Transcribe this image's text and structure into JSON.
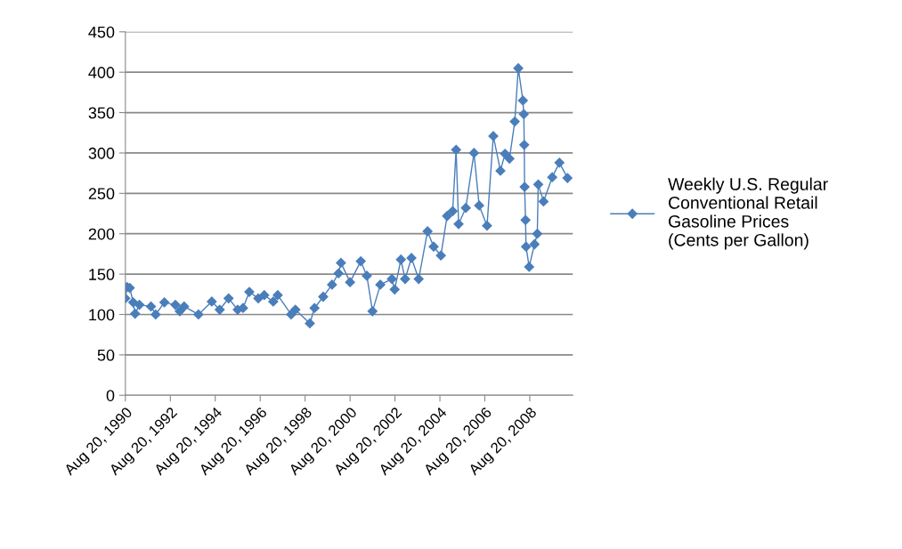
{
  "chart_data": {
    "type": "line",
    "x": [
      "1990-08-20",
      "1990-09-15",
      "1990-10-30",
      "1990-12-25",
      "1991-01-25",
      "1991-04-05",
      "1991-10-10",
      "1991-12-25",
      "1992-05-15",
      "1992-11-10",
      "1993-01-20",
      "1993-04-01",
      "1993-11-20",
      "1994-06-25",
      "1994-11-01",
      "1995-03-25",
      "1995-08-20",
      "1995-11-15",
      "1996-02-25",
      "1996-07-20",
      "1996-10-25",
      "1997-03-20",
      "1997-06-01",
      "1998-01-05",
      "1998-03-15",
      "1998-11-05",
      "1999-01-20",
      "1999-06-10",
      "1999-11-01",
      "2000-02-15",
      "2000-03-25",
      "2000-08-20",
      "2001-02-10",
      "2001-05-20",
      "2001-08-20",
      "2001-12-25",
      "2002-07-01",
      "2002-08-15",
      "2002-11-25",
      "2003-02-01",
      "2003-05-15",
      "2003-09-10",
      "2004-02-01",
      "2004-05-10",
      "2004-09-05",
      "2004-12-15",
      "2005-03-15",
      "2005-05-10",
      "2005-06-20",
      "2005-10-15",
      "2006-02-25",
      "2006-05-20",
      "2006-09-25",
      "2007-01-05",
      "2007-05-01",
      "2007-07-15",
      "2007-09-25",
      "2007-12-20",
      "2008-02-15",
      "2008-04-30",
      "2008-05-15",
      "2008-05-22",
      "2008-05-28",
      "2008-06-12",
      "2008-06-20",
      "2008-08-10",
      "2008-11-05",
      "2008-12-20",
      "2009-01-05",
      "2009-04-01",
      "2009-08-20",
      "2009-12-15",
      "2010-04-25"
    ],
    "series": [
      {
        "name": "Weekly U.S. Regular Conventional Retail Gasoline Prices  (Cents per Gallon)",
        "color": "#4a7ebb",
        "values": [
          120,
          134,
          133,
          115,
          101,
          112,
          110,
          100,
          115,
          112,
          104,
          110,
          100,
          116,
          106,
          120,
          106,
          108,
          128,
          120,
          124,
          116,
          124,
          100,
          106,
          89,
          108,
          122,
          137,
          151,
          164,
          140,
          166,
          148,
          104,
          137,
          144,
          131,
          168,
          144,
          170,
          144,
          203,
          184,
          173,
          222,
          228,
          304,
          212,
          232,
          300,
          235,
          210,
          321,
          278,
          299,
          293,
          339,
          405,
          365,
          348,
          310,
          258,
          217,
          184,
          159,
          187,
          200,
          261,
          240,
          270,
          288,
          269
        ]
      }
    ],
    "ylim": [
      0,
      450
    ],
    "yticks": [
      0,
      50,
      100,
      150,
      200,
      250,
      300,
      350,
      400,
      450
    ],
    "xlim": [
      "1990-08-20",
      "2010-07-20"
    ],
    "xticks": [
      {
        "value": "1990-08-20",
        "label": "Aug 20, 1990"
      },
      {
        "value": "1992-08-20",
        "label": "Aug 20, 1992"
      },
      {
        "value": "1994-08-20",
        "label": "Aug 20, 1994"
      },
      {
        "value": "1996-08-20",
        "label": "Aug 20, 1996"
      },
      {
        "value": "1998-08-20",
        "label": "Aug 20, 1998"
      },
      {
        "value": "2000-08-20",
        "label": "Aug 20, 2000"
      },
      {
        "value": "2002-08-20",
        "label": "Aug 20, 2002"
      },
      {
        "value": "2004-08-20",
        "label": "Aug 20, 2004"
      },
      {
        "value": "2006-08-20",
        "label": "Aug 20, 2006"
      },
      {
        "value": "2008-08-20",
        "label": "Aug 20, 2008"
      }
    ],
    "grid": "y",
    "legend": "right",
    "marker": "diamond",
    "line_style": "solid"
  }
}
